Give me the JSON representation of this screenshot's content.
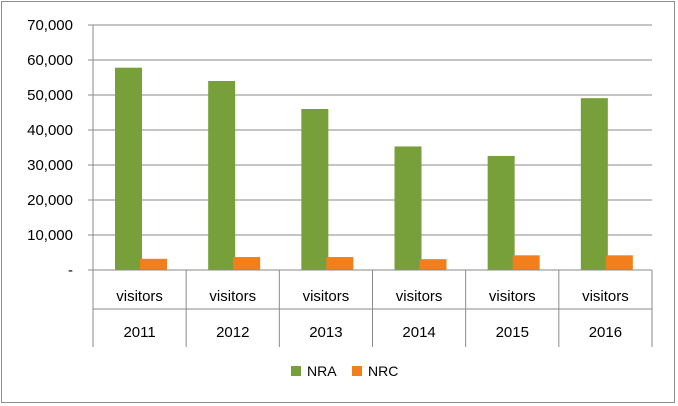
{
  "chart_data": {
    "type": "bar",
    "categories": [
      {
        "top": "visitors",
        "bottom": "2011"
      },
      {
        "top": "visitors",
        "bottom": "2012"
      },
      {
        "top": "visitors",
        "bottom": "2013"
      },
      {
        "top": "visitors",
        "bottom": "2014"
      },
      {
        "top": "visitors",
        "bottom": "2015"
      },
      {
        "top": "visitors",
        "bottom": "2016"
      }
    ],
    "series": [
      {
        "name": "NRA",
        "color": "#77a03a",
        "values": [
          57800,
          54000,
          46000,
          35300,
          32600,
          49100
        ]
      },
      {
        "name": "NRC",
        "color": "#f27f1b",
        "values": [
          3200,
          3700,
          3700,
          3100,
          4200,
          4200
        ]
      }
    ],
    "ylim": [
      0,
      70000
    ],
    "yticks": [
      {
        "value": 0,
        "label": "-"
      },
      {
        "value": 10000,
        "label": "10,000"
      },
      {
        "value": 20000,
        "label": "20,000"
      },
      {
        "value": 30000,
        "label": "30,000"
      },
      {
        "value": 40000,
        "label": "40,000"
      },
      {
        "value": 50000,
        "label": "50,000"
      },
      {
        "value": 60000,
        "label": "60,000"
      },
      {
        "value": 70000,
        "label": "70,000"
      }
    ],
    "grid": true,
    "legend_position": "bottom"
  }
}
